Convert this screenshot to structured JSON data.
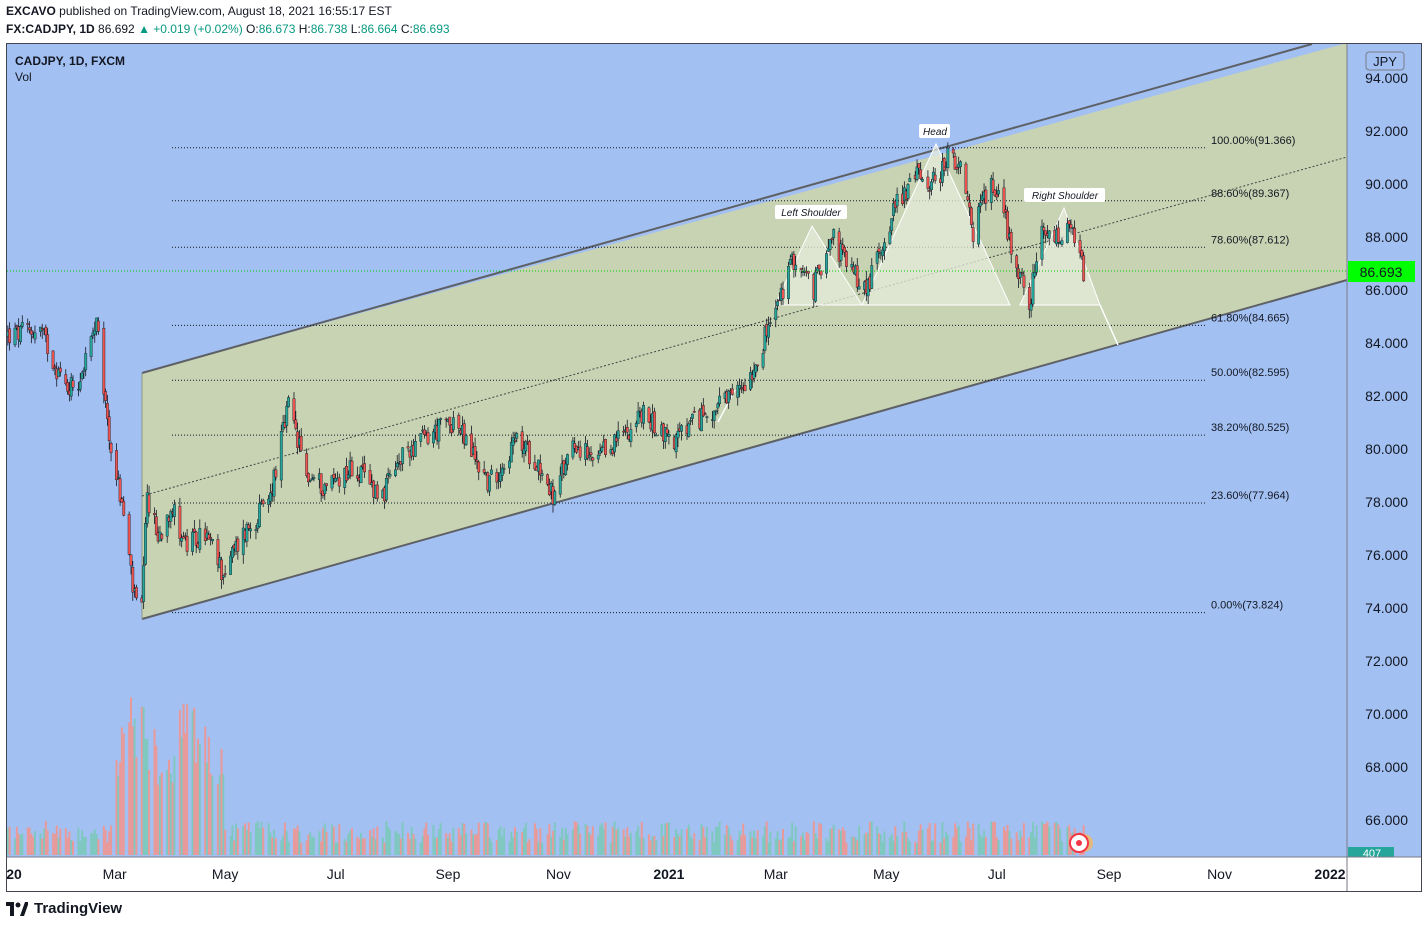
{
  "header": {
    "author": "EXCAVO",
    "published_text": "published on TradingView.com, August 18, 2021 16:55:17 EST",
    "symbol_line": "FX:CADJPY, 1D",
    "last": "86.692",
    "change": "▲ +0.019 (+0.02%)",
    "o_label": "O:",
    "o": "86.673",
    "h_label": "H:",
    "h": "86.738",
    "l_label": "L:",
    "l": "86.664",
    "c_label": "C:",
    "c": "86.693"
  },
  "legend": {
    "title": "CADJPY, 1D, FXCM",
    "vol": "Vol"
  },
  "footer": {
    "brand": "TradingView"
  },
  "colors": {
    "background": "#a3c0f2",
    "channel_fill": "#c8d3b3",
    "up": "#26a69a",
    "down": "#ef5350",
    "price_badge": "#00ff00",
    "pattern_fill": "#e6ecdc"
  },
  "chart_data": {
    "type": "candlestick",
    "currency_label": "JPY",
    "current_price": "86.693",
    "volume_badge": "407",
    "y_ticks": [
      "94.000",
      "92.000",
      "90.000",
      "88.000",
      "86.000",
      "84.000",
      "82.000",
      "80.000",
      "78.000",
      "76.000",
      "74.000",
      "72.000",
      "70.000",
      "68.000",
      "66.000"
    ],
    "x_ticks": [
      "20",
      "Mar",
      "May",
      "Jul",
      "Sep",
      "Nov",
      "2021",
      "Mar",
      "May",
      "Jul",
      "Sep",
      "Nov",
      "2022"
    ],
    "fib_levels": [
      {
        "label": "100.00%(91.366)",
        "value": 91.366
      },
      {
        "label": "88.60%(89.367)",
        "value": 89.367
      },
      {
        "label": "78.60%(87.612)",
        "value": 87.612
      },
      {
        "label": "61.80%(84.665)",
        "value": 84.665
      },
      {
        "label": "50.00%(82.595)",
        "value": 82.595
      },
      {
        "label": "38.20%(80.525)",
        "value": 80.525
      },
      {
        "label": "23.60%(77.964)",
        "value": 77.964
      },
      {
        "label": "0.00%(73.824)",
        "value": 73.824
      }
    ],
    "annotations": [
      "Left Shoulder",
      "Head",
      "Right Shoulder"
    ],
    "price_path": [
      [
        "2020-01-06",
        84.3
      ],
      [
        "2020-01-20",
        84.5
      ],
      [
        "2020-02-03",
        82.3
      ],
      [
        "2020-02-10",
        82.6
      ],
      [
        "2020-02-20",
        84.6
      ],
      [
        "2020-02-27",
        80.5
      ],
      [
        "2020-03-06",
        77.5
      ],
      [
        "2020-03-12",
        74.3
      ],
      [
        "2020-03-16",
        73.9
      ],
      [
        "2020-03-19",
        78.2
      ],
      [
        "2020-03-25",
        76.6
      ],
      [
        "2020-04-01",
        77.9
      ],
      [
        "2020-04-10",
        76.3
      ],
      [
        "2020-04-20",
        76.8
      ],
      [
        "2020-04-30",
        75.3
      ],
      [
        "2020-05-11",
        76.8
      ],
      [
        "2020-05-25",
        78.0
      ],
      [
        "2020-06-05",
        81.6
      ],
      [
        "2020-06-15",
        79.0
      ],
      [
        "2020-06-25",
        78.6
      ],
      [
        "2020-07-10",
        79.3
      ],
      [
        "2020-07-27",
        78.3
      ],
      [
        "2020-08-10",
        80.0
      ],
      [
        "2020-08-24",
        80.6
      ],
      [
        "2020-09-04",
        81.1
      ],
      [
        "2020-09-24",
        78.7
      ],
      [
        "2020-10-09",
        80.3
      ],
      [
        "2020-10-20",
        79.6
      ],
      [
        "2020-10-30",
        78.1
      ],
      [
        "2020-11-09",
        80.4
      ],
      [
        "2020-11-20",
        79.4
      ],
      [
        "2020-12-04",
        80.4
      ],
      [
        "2020-12-17",
        81.3
      ],
      [
        "2021-01-04",
        80.3
      ],
      [
        "2021-01-20",
        81.3
      ],
      [
        "2021-02-04",
        81.8
      ],
      [
        "2021-02-16",
        83.0
      ],
      [
        "2021-03-03",
        85.6
      ],
      [
        "2021-03-11",
        87.2
      ],
      [
        "2021-03-22",
        86.0
      ],
      [
        "2021-03-31",
        88.2
      ],
      [
        "2021-04-09",
        87.0
      ],
      [
        "2021-04-20",
        86.0
      ],
      [
        "2021-04-26",
        87.2
      ],
      [
        "2021-05-07",
        89.4
      ],
      [
        "2021-05-19",
        90.4
      ],
      [
        "2021-05-28",
        90.0
      ],
      [
        "2021-06-04",
        91.1
      ],
      [
        "2021-06-11",
        90.4
      ],
      [
        "2021-06-18",
        88.2
      ],
      [
        "2021-06-24",
        89.6
      ],
      [
        "2021-07-02",
        90.0
      ],
      [
        "2021-07-09",
        87.6
      ],
      [
        "2021-07-19",
        85.5
      ],
      [
        "2021-07-26",
        88.0
      ],
      [
        "2021-08-04",
        87.9
      ],
      [
        "2021-08-11",
        88.2
      ],
      [
        "2021-08-18",
        86.7
      ]
    ]
  }
}
